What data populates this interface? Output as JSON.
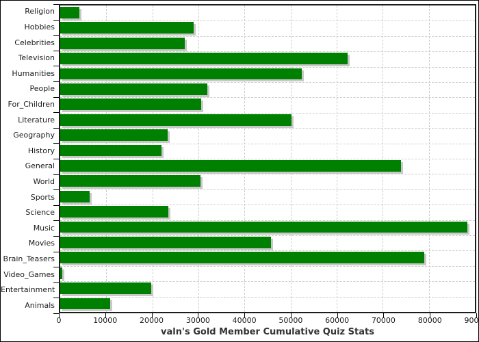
{
  "chart_data": {
    "type": "bar",
    "orientation": "horizontal",
    "title": "valn's Gold Member Cumulative Quiz Stats",
    "categories": [
      "Religion",
      "Hobbies",
      "Celebrities",
      "Television",
      "Humanities",
      "People",
      "For_Children",
      "Literature",
      "Geography",
      "History",
      "General",
      "World",
      "Sports",
      "Science",
      "Music",
      "Movies",
      "Brain_Teasers",
      "Video_Games",
      "Entertainment",
      "Animals"
    ],
    "values": [
      4100,
      29000,
      27000,
      62400,
      52400,
      31900,
      30600,
      50200,
      23300,
      22000,
      74000,
      30400,
      6400,
      23400,
      88300,
      45700,
      79000,
      500,
      19800,
      10800
    ],
    "xlabel": "",
    "ylabel": "",
    "xlim": [
      0,
      90000
    ],
    "x_ticks": [
      0,
      10000,
      20000,
      30000,
      40000,
      50000,
      60000,
      70000,
      80000,
      90000
    ],
    "x_tick_labels": [
      "0",
      "10000",
      "20000",
      "30000",
      "40000",
      "50000",
      "60000",
      "70000",
      "80000",
      "90000"
    ],
    "grid": true,
    "legend_position": "none",
    "colors": {
      "bar": "#008000",
      "bar_shadow": "#c8c8c8",
      "grid": "#cccccc",
      "axis_frame": "#1c1c1c",
      "tick": "#000000",
      "label_text": "#1a1a1a",
      "title_text": "#333333"
    }
  }
}
